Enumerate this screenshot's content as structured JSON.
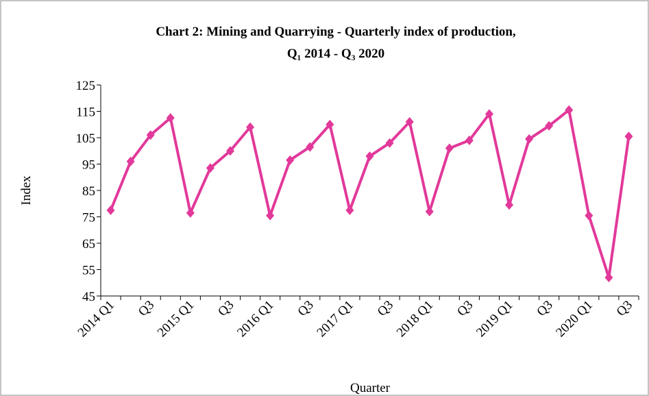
{
  "chart_data": {
    "type": "line",
    "title": [
      "Chart 2: Mining and Quarrying - Quarterly index of production,",
      "Q₁ 2014 - Q₃ 2020"
    ],
    "x_label": "Quarter",
    "y_label": "Index",
    "categories": [
      "2014 Q1",
      null,
      "Q3",
      null,
      "2015 Q1",
      null,
      "Q3",
      null,
      "2016 Q1",
      null,
      "Q3",
      null,
      "2017 Q1",
      null,
      "Q3",
      null,
      "2018 Q1",
      null,
      "Q3",
      null,
      "2019 Q1",
      null,
      "Q3",
      null,
      "2020 Q1",
      null,
      "Q3"
    ],
    "series": [
      {
        "name": "Index",
        "color": "#e2399a",
        "values": [
          77.5,
          96,
          106,
          112.5,
          76.5,
          93.5,
          100,
          109,
          75.5,
          96.5,
          101.5,
          110,
          77.5,
          98,
          103,
          111,
          77,
          101,
          104,
          114,
          79.5,
          104.5,
          109.5,
          115.5,
          75.5,
          52,
          105.5
        ]
      }
    ],
    "ylim": [
      45,
      125
    ],
    "yticks": [
      45,
      55,
      65,
      75,
      85,
      95,
      105,
      115,
      125
    ]
  }
}
